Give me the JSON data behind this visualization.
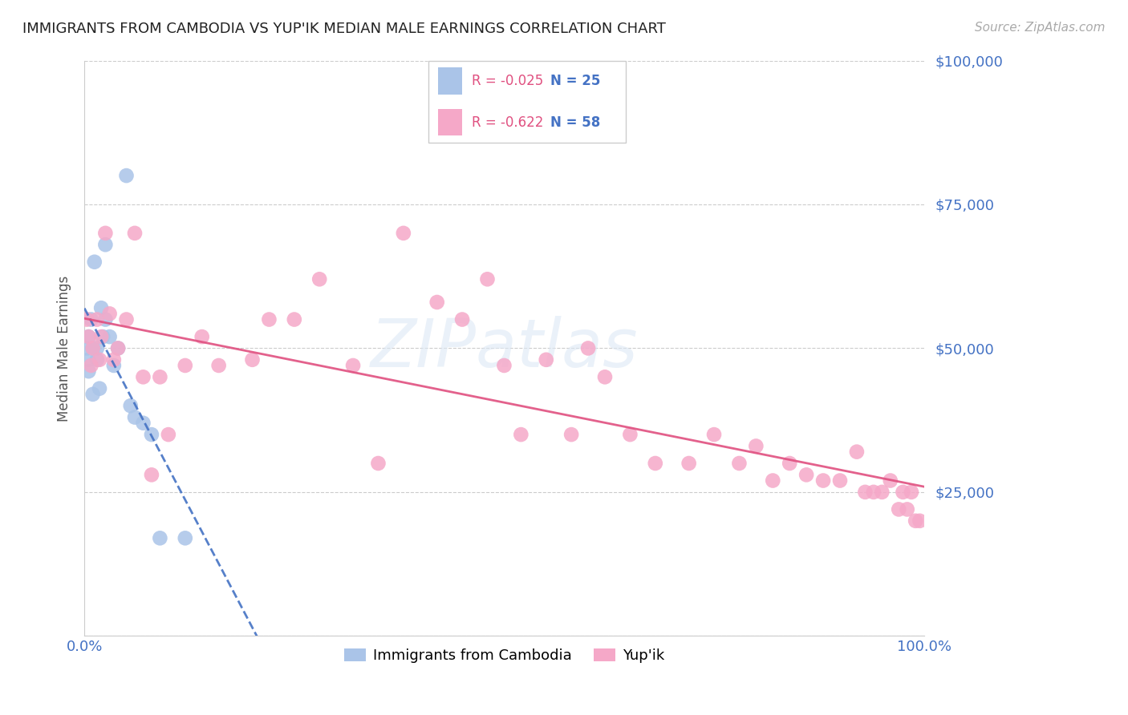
{
  "title": "IMMIGRANTS FROM CAMBODIA VS YUP'IK MEDIAN MALE EARNINGS CORRELATION CHART",
  "source": "Source: ZipAtlas.com",
  "ylabel": "Median Male Earnings",
  "legend_label1": "Immigrants from Cambodia",
  "legend_label2": "Yup'ik",
  "R1": "-0.025",
  "N1": "25",
  "R2": "-0.622",
  "N2": "58",
  "color1": "#aac4e8",
  "color2": "#f5a8c8",
  "line_color1": "#4472c4",
  "line_color2": "#e05080",
  "watermark": "ZIPatlas",
  "ylim": [
    0,
    100000
  ],
  "xlim": [
    0,
    100
  ],
  "yticks": [
    0,
    25000,
    50000,
    75000,
    100000
  ],
  "ytick_labels": [
    "",
    "$25,000",
    "$50,000",
    "$75,000",
    "$100,000"
  ],
  "xticks": [
    0,
    100
  ],
  "xtick_labels": [
    "0.0%",
    "100.0%"
  ],
  "cambodia_x": [
    0.3,
    0.5,
    0.5,
    0.5,
    0.8,
    1.0,
    1.0,
    1.2,
    1.5,
    1.5,
    1.8,
    2.0,
    2.2,
    2.5,
    2.5,
    3.0,
    3.5,
    4.0,
    5.0,
    5.5,
    6.0,
    7.0,
    8.0,
    9.0,
    12.0
  ],
  "cambodia_y": [
    50000,
    48000,
    52000,
    46000,
    55000,
    50000,
    42000,
    65000,
    48000,
    50000,
    43000,
    57000,
    52000,
    55000,
    68000,
    52000,
    47000,
    50000,
    80000,
    40000,
    38000,
    37000,
    35000,
    17000,
    17000
  ],
  "yupik_x": [
    0.3,
    0.5,
    0.8,
    1.0,
    1.5,
    1.8,
    2.0,
    2.5,
    3.0,
    3.5,
    4.0,
    5.0,
    6.0,
    7.0,
    8.0,
    9.0,
    10.0,
    12.0,
    14.0,
    16.0,
    20.0,
    22.0,
    25.0,
    28.0,
    32.0,
    35.0,
    38.0,
    42.0,
    45.0,
    48.0,
    50.0,
    52.0,
    55.0,
    58.0,
    60.0,
    62.0,
    65.0,
    68.0,
    72.0,
    75.0,
    78.0,
    80.0,
    82.0,
    84.0,
    86.0,
    88.0,
    90.0,
    92.0,
    93.0,
    94.0,
    95.0,
    96.0,
    97.0,
    97.5,
    98.0,
    98.5,
    99.0,
    99.5
  ],
  "yupik_y": [
    55000,
    52000,
    47000,
    50000,
    55000,
    48000,
    52000,
    70000,
    56000,
    48000,
    50000,
    55000,
    70000,
    45000,
    28000,
    45000,
    35000,
    47000,
    52000,
    47000,
    48000,
    55000,
    55000,
    62000,
    47000,
    30000,
    70000,
    58000,
    55000,
    62000,
    47000,
    35000,
    48000,
    35000,
    50000,
    45000,
    35000,
    30000,
    30000,
    35000,
    30000,
    33000,
    27000,
    30000,
    28000,
    27000,
    27000,
    32000,
    25000,
    25000,
    25000,
    27000,
    22000,
    25000,
    22000,
    25000,
    20000,
    20000
  ],
  "title_fontsize": 13,
  "source_fontsize": 11,
  "tick_fontsize": 13,
  "ylabel_fontsize": 12
}
